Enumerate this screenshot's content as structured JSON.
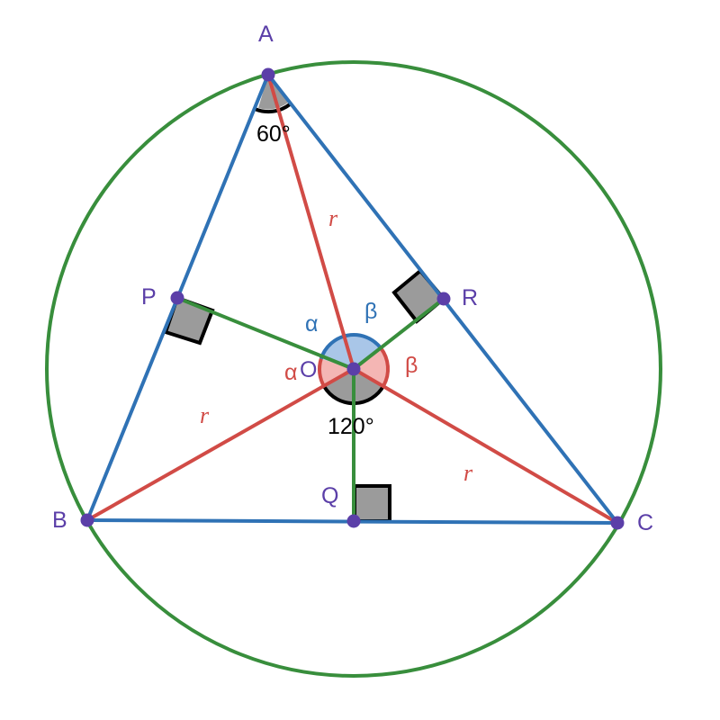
{
  "colors": {
    "circle": "#388e3c",
    "triangle": "#2f72b5",
    "radius": "#d14b46",
    "perpendicular": "#388e3c",
    "point": "#5b3fa8",
    "point_label": "#5b3fa8",
    "right_angle_fill": "#9b9b9b",
    "alpha_sector": "#f4b6b4",
    "beta_sector": "#a9c6e8",
    "label_alpha_top": "#2f72b5",
    "label_beta_top": "#2f72b5",
    "label_alpha_left": "#d14b46",
    "label_beta_right": "#d14b46",
    "r_label": "#d14b46"
  },
  "points": {
    "A": "A",
    "B": "B",
    "C": "C",
    "O": "O",
    "P": "P",
    "Q": "Q",
    "R": "R"
  },
  "angles": {
    "angle_A": "60°",
    "angle_BOC": "120°",
    "alpha_upper": "α",
    "beta_upper": "β",
    "alpha_lower": "α",
    "beta_lower": "β"
  },
  "radius_symbol": "r"
}
